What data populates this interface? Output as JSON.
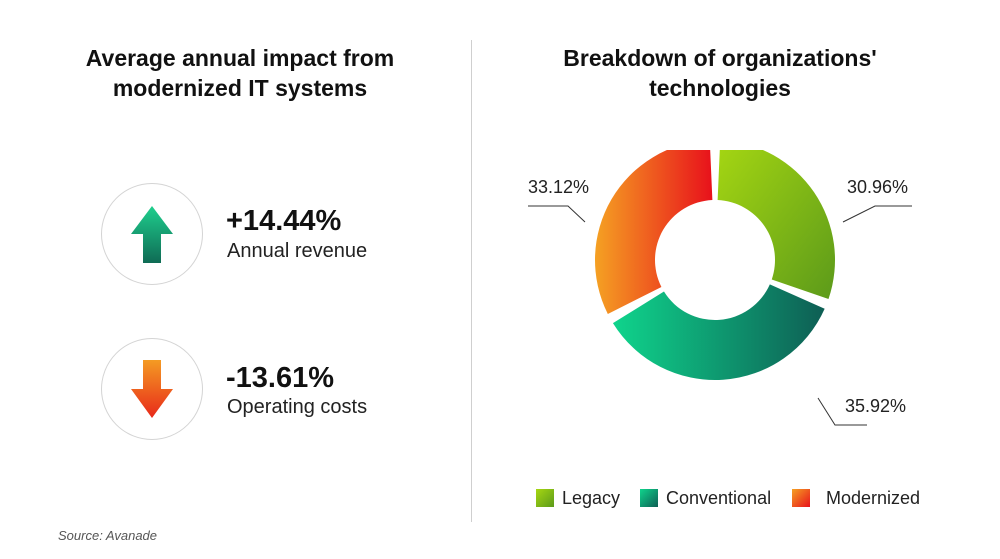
{
  "left_panel": {
    "title_line1": "Average annual impact from",
    "title_line2": "modernized IT systems",
    "metrics": [
      {
        "value": "+14.44%",
        "label": "Annual revenue",
        "icon": "arrow-up-icon",
        "direction": "up"
      },
      {
        "value": "-13.61%",
        "label": "Operating costs",
        "icon": "arrow-down-icon",
        "direction": "down"
      }
    ]
  },
  "right_panel": {
    "title_line1": "Breakdown of organizations'",
    "title_line2": "technologies"
  },
  "source": "Source: Avanade",
  "colors": {
    "legacy": [
      "#a6d712",
      "#5c9a1a"
    ],
    "conventional": [
      "#0fd48c",
      "#0e5e54"
    ],
    "modernized": [
      "#f5a123",
      "#e8111b"
    ],
    "up_arrow": [
      "#1fcf8d",
      "#0f6b55"
    ],
    "down_arrow": [
      "#f49b23",
      "#e8291a"
    ]
  },
  "chart_data": {
    "type": "pie",
    "style": "donut",
    "slices": [
      {
        "label": "Legacy",
        "value": 30.96,
        "label_text": "30.96%"
      },
      {
        "label": "Conventional",
        "value": 35.92,
        "label_text": "35.92%"
      },
      {
        "label": "Modernized",
        "value": 33.12,
        "label_text": "33.12%"
      }
    ],
    "legend_position": "bottom"
  }
}
